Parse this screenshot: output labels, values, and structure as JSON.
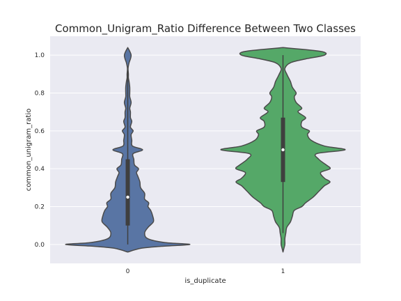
{
  "chart_data": {
    "type": "violin",
    "title": "Common_Unigram_Ratio Difference Between Two Classes",
    "xlabel": "is_duplicate",
    "ylabel": "common_unigram_ratio",
    "categories": [
      "0",
      "1"
    ],
    "ylim": [
      -0.1,
      1.1
    ],
    "yticks": [
      0.0,
      0.2,
      0.4,
      0.6,
      0.8,
      1.0
    ],
    "ytick_labels": [
      "0.0",
      "0.2",
      "0.4",
      "0.6",
      "0.8",
      "1.0"
    ],
    "grid": true,
    "series": [
      {
        "category": "0",
        "color": "#5975a4",
        "median": 0.25,
        "q1": 0.1,
        "q3": 0.45,
        "whisker_low": 0.0,
        "whisker_high": 0.92,
        "density_profile": [
          [
            -0.04,
            0.0
          ],
          [
            -0.02,
            0.2
          ],
          [
            -0.01,
            0.5
          ],
          [
            0.0,
            0.92
          ],
          [
            0.01,
            0.55
          ],
          [
            0.03,
            0.3
          ],
          [
            0.06,
            0.25
          ],
          [
            0.09,
            0.3
          ],
          [
            0.12,
            0.38
          ],
          [
            0.15,
            0.37
          ],
          [
            0.18,
            0.34
          ],
          [
            0.2,
            0.3
          ],
          [
            0.22,
            0.31
          ],
          [
            0.24,
            0.25
          ],
          [
            0.27,
            0.25
          ],
          [
            0.3,
            0.19
          ],
          [
            0.33,
            0.18
          ],
          [
            0.36,
            0.15
          ],
          [
            0.38,
            0.13
          ],
          [
            0.4,
            0.16
          ],
          [
            0.42,
            0.1
          ],
          [
            0.45,
            0.09
          ],
          [
            0.48,
            0.08
          ],
          [
            0.5,
            0.22
          ],
          [
            0.52,
            0.07
          ],
          [
            0.55,
            0.06
          ],
          [
            0.58,
            0.05
          ],
          [
            0.6,
            0.08
          ],
          [
            0.62,
            0.04
          ],
          [
            0.65,
            0.06
          ],
          [
            0.67,
            0.04
          ],
          [
            0.7,
            0.04
          ],
          [
            0.72,
            0.03
          ],
          [
            0.75,
            0.05
          ],
          [
            0.78,
            0.03
          ],
          [
            0.8,
            0.03
          ],
          [
            0.83,
            0.03
          ],
          [
            0.86,
            0.02
          ],
          [
            0.88,
            0.01
          ],
          [
            0.9,
            0.01
          ],
          [
            0.93,
            0.005
          ],
          [
            0.96,
            0.02
          ],
          [
            0.98,
            0.04
          ],
          [
            1.0,
            0.05
          ],
          [
            1.02,
            0.03
          ],
          [
            1.04,
            0.0
          ]
        ]
      },
      {
        "category": "1",
        "color": "#55a868",
        "median": 0.5,
        "q1": 0.33,
        "q3": 0.67,
        "whisker_low": 0.06,
        "whisker_high": 1.0,
        "density_profile": [
          [
            -0.04,
            0.0
          ],
          [
            -0.02,
            0.005
          ],
          [
            0.0,
            0.01
          ],
          [
            0.03,
            0.01
          ],
          [
            0.06,
            0.015
          ],
          [
            0.09,
            0.02
          ],
          [
            0.12,
            0.04
          ],
          [
            0.15,
            0.05
          ],
          [
            0.18,
            0.06
          ],
          [
            0.2,
            0.1
          ],
          [
            0.22,
            0.12
          ],
          [
            0.25,
            0.16
          ],
          [
            0.28,
            0.19
          ],
          [
            0.31,
            0.22
          ],
          [
            0.33,
            0.25
          ],
          [
            0.35,
            0.22
          ],
          [
            0.38,
            0.2
          ],
          [
            0.4,
            0.25
          ],
          [
            0.42,
            0.23
          ],
          [
            0.45,
            0.19
          ],
          [
            0.48,
            0.18
          ],
          [
            0.5,
            0.33
          ],
          [
            0.52,
            0.22
          ],
          [
            0.55,
            0.15
          ],
          [
            0.58,
            0.13
          ],
          [
            0.6,
            0.14
          ],
          [
            0.62,
            0.1
          ],
          [
            0.65,
            0.1
          ],
          [
            0.67,
            0.12
          ],
          [
            0.7,
            0.08
          ],
          [
            0.72,
            0.1
          ],
          [
            0.75,
            0.07
          ],
          [
            0.78,
            0.06
          ],
          [
            0.8,
            0.07
          ],
          [
            0.83,
            0.05
          ],
          [
            0.86,
            0.04
          ],
          [
            0.88,
            0.03
          ],
          [
            0.9,
            0.02
          ],
          [
            0.93,
            0.01
          ],
          [
            0.96,
            0.04
          ],
          [
            0.98,
            0.12
          ],
          [
            1.0,
            0.22
          ],
          [
            1.02,
            0.2
          ],
          [
            1.04,
            0.0
          ]
        ]
      }
    ]
  },
  "style": {
    "background": "#ffffff",
    "plot_background": "#eaeaf2",
    "grid_color": "#ffffff",
    "outline_color": "#4a4a4a",
    "box_color": "#3f3f3f",
    "median_color": "#ffffff"
  }
}
